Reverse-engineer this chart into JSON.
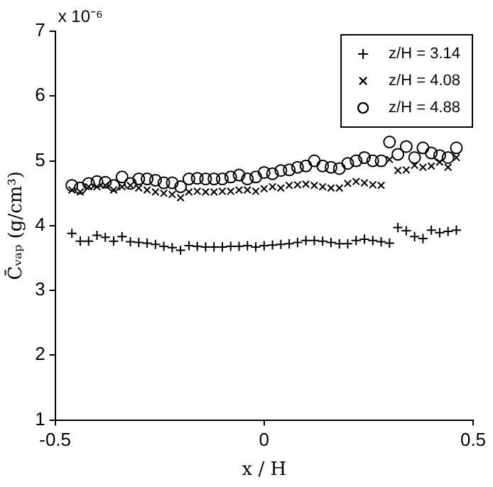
{
  "chart_data": {
    "type": "scatter",
    "xlabel": "x / H",
    "ylabel": "C̄ᵥₐₚ (g/cm³)",
    "annotations": [
      "x 10⁻⁶"
    ],
    "x": [
      -0.46,
      -0.44,
      -0.42,
      -0.4,
      -0.38,
      -0.36,
      -0.34,
      -0.32,
      -0.3,
      -0.28,
      -0.26,
      -0.24,
      -0.22,
      -0.2,
      -0.18,
      -0.16,
      -0.14,
      -0.12,
      -0.1,
      -0.08,
      -0.06,
      -0.04,
      -0.02,
      0,
      0.02,
      0.04,
      0.06,
      0.08,
      0.1,
      0.12,
      0.14,
      0.16,
      0.18,
      0.2,
      0.22,
      0.24,
      0.26,
      0.28,
      0.3,
      0.32,
      0.34,
      0.36,
      0.38,
      0.4,
      0.42,
      0.44,
      0.46
    ],
    "series": [
      {
        "name": "z/H = 3.14",
        "color": "#000000",
        "marker": "plus",
        "values": [
          3.88,
          3.76,
          3.76,
          3.85,
          3.82,
          3.76,
          3.83,
          3.75,
          3.74,
          3.73,
          3.71,
          3.68,
          3.66,
          3.62,
          3.69,
          3.68,
          3.67,
          3.67,
          3.67,
          3.68,
          3.68,
          3.69,
          3.67,
          3.69,
          3.7,
          3.71,
          3.72,
          3.74,
          3.77,
          3.77,
          3.76,
          3.74,
          3.72,
          3.72,
          3.77,
          3.79,
          3.77,
          3.75,
          3.73,
          3.97,
          3.92,
          3.83,
          3.8,
          3.93,
          3.89,
          3.91,
          3.93
        ]
      },
      {
        "name": "z/H = 4.08",
        "color": "#000000",
        "marker": "cross",
        "values": [
          4.55,
          4.52,
          4.6,
          4.6,
          4.62,
          4.55,
          4.6,
          4.62,
          4.58,
          4.55,
          4.52,
          4.5,
          4.48,
          4.43,
          4.52,
          4.53,
          4.52,
          4.52,
          4.53,
          4.53,
          4.55,
          4.55,
          4.53,
          4.57,
          4.6,
          4.58,
          4.62,
          4.63,
          4.64,
          4.62,
          4.6,
          4.58,
          4.58,
          4.65,
          4.68,
          4.66,
          4.63,
          4.62,
          5.02,
          4.85,
          4.86,
          4.93,
          4.9,
          4.92,
          4.98,
          4.9,
          5.05
        ]
      },
      {
        "name": "z/H = 4.88",
        "color": "#000000",
        "marker": "circle",
        "values": [
          4.62,
          4.58,
          4.65,
          4.68,
          4.67,
          4.62,
          4.75,
          4.65,
          4.72,
          4.72,
          4.7,
          4.66,
          4.66,
          4.6,
          4.72,
          4.73,
          4.72,
          4.72,
          4.72,
          4.75,
          4.78,
          4.72,
          4.75,
          4.82,
          4.8,
          4.85,
          4.86,
          4.9,
          4.92,
          5.0,
          4.92,
          4.9,
          4.88,
          4.96,
          5.0,
          5.05,
          5.0,
          5.0,
          5.29,
          5.1,
          5.22,
          5.05,
          5.2,
          5.12,
          5.08,
          5.05,
          5.2
        ]
      }
    ],
    "xlim": [
      -0.5,
      0.5
    ],
    "xticks": [
      -0.5,
      0,
      0.5
    ],
    "ylim": [
      1,
      7
    ],
    "yticks": [
      1,
      2,
      3,
      4,
      5,
      6,
      7
    ],
    "grid": false,
    "legend": "top right"
  }
}
